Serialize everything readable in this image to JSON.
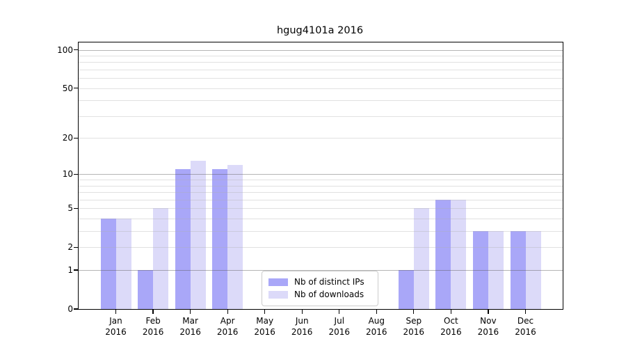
{
  "title": "hgug4101a 2016",
  "chart_data": {
    "type": "bar",
    "title": "hgug4101a 2016",
    "categories": [
      "Jan",
      "Feb",
      "Mar",
      "Apr",
      "May",
      "Jun",
      "Jul",
      "Aug",
      "Sep",
      "Oct",
      "Nov",
      "Dec"
    ],
    "category_year": "2016",
    "series": [
      {
        "name": "Nb of distinct IPs",
        "color": "#a9a7f8",
        "values": [
          4,
          1,
          11,
          11,
          0,
          0,
          0,
          0,
          1,
          6,
          3,
          3
        ]
      },
      {
        "name": "Nb of downloads",
        "color": "#dcdaf9",
        "values": [
          4,
          5,
          13,
          12,
          0,
          0,
          0,
          0,
          5,
          6,
          3,
          3
        ]
      }
    ],
    "yscale": "log10(1+x)",
    "ylim": [
      0,
      114
    ],
    "yticks": [
      0,
      1,
      2,
      5,
      10,
      20,
      50,
      100
    ],
    "major_gridlines": [
      1,
      10,
      100
    ],
    "minor_gridlines": [
      2,
      3,
      4,
      5,
      6,
      7,
      8,
      9,
      20,
      30,
      40,
      50,
      60,
      70,
      80,
      90
    ],
    "grid": true,
    "legend_position": "lower center",
    "xlabel": "",
    "ylabel": ""
  },
  "colors": {
    "background": "#ffffff",
    "axis": "#000000",
    "major_grid": "#b1b1b1",
    "minor_grid": "#e9e9e9",
    "legend_border": "#cccccc"
  }
}
